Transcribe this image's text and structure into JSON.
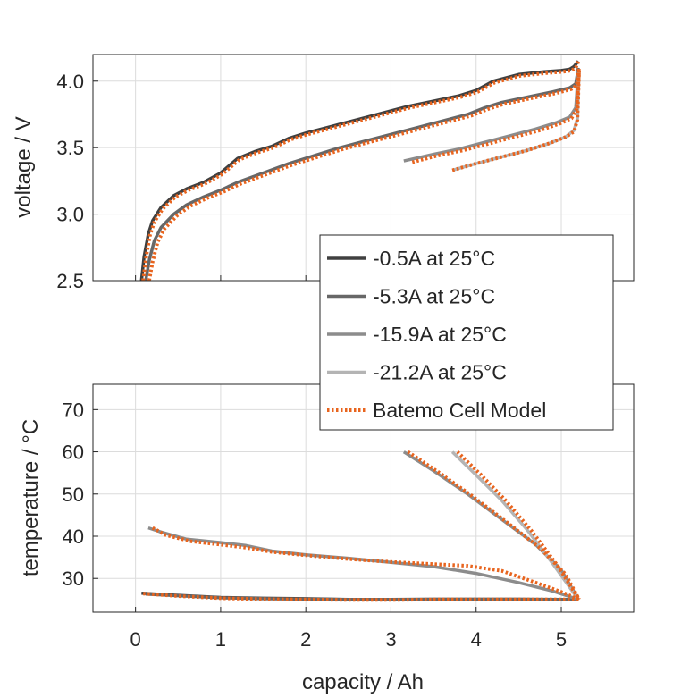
{
  "chart_data": [
    {
      "type": "line",
      "xlabel": "",
      "ylabel": "voltage / V",
      "xlim": [
        -0.5,
        5.85
      ],
      "ylim": [
        2.5,
        4.2
      ],
      "xticks": [
        0,
        1,
        2,
        3,
        4,
        5
      ],
      "xtick_labels": [],
      "yticks": [
        2.5,
        3.0,
        3.5,
        4.0
      ],
      "ytick_labels": [
        "2.5",
        "3.0",
        "3.5",
        "4.0"
      ],
      "grid": true,
      "series": [
        {
          "name": "-0.5A at 25°C",
          "color": "#404040",
          "style": "solid",
          "x": [
            0.07,
            0.1,
            0.15,
            0.2,
            0.3,
            0.45,
            0.6,
            0.8,
            1.0,
            1.2,
            1.4,
            1.6,
            1.8,
            2.0,
            2.3,
            2.6,
            2.9,
            3.2,
            3.5,
            3.8,
            4.0,
            4.2,
            4.5,
            4.8,
            5.0,
            5.1,
            5.15,
            5.2
          ],
          "y": [
            2.5,
            2.68,
            2.85,
            2.95,
            3.05,
            3.14,
            3.19,
            3.24,
            3.31,
            3.42,
            3.47,
            3.51,
            3.57,
            3.61,
            3.66,
            3.71,
            3.76,
            3.81,
            3.85,
            3.89,
            3.93,
            4.0,
            4.05,
            4.07,
            4.08,
            4.09,
            4.11,
            4.15
          ]
        },
        {
          "name": "-5.3A at 25°C",
          "color": "#676767",
          "style": "solid",
          "x": [
            0.12,
            0.16,
            0.22,
            0.3,
            0.45,
            0.6,
            0.8,
            1.0,
            1.2,
            1.5,
            1.8,
            2.1,
            2.4,
            2.7,
            3.0,
            3.3,
            3.6,
            3.9,
            4.1,
            4.3,
            4.6,
            4.9,
            5.1,
            5.17,
            5.2
          ],
          "y": [
            2.5,
            2.65,
            2.8,
            2.9,
            3.0,
            3.07,
            3.13,
            3.18,
            3.24,
            3.31,
            3.38,
            3.44,
            3.5,
            3.55,
            3.6,
            3.65,
            3.7,
            3.75,
            3.8,
            3.84,
            3.88,
            3.92,
            3.95,
            3.98,
            4.1
          ]
        },
        {
          "name": "-15.9A at 25°C",
          "color": "#8c8c8c",
          "style": "solid",
          "x": [
            3.15,
            3.5,
            3.8,
            4.1,
            4.4,
            4.7,
            4.95,
            5.1,
            5.17,
            5.2
          ],
          "y": [
            3.4,
            3.45,
            3.49,
            3.54,
            3.59,
            3.64,
            3.69,
            3.73,
            3.8,
            4.08
          ]
        },
        {
          "name": "-21.2A at 25°C",
          "color": "#b4b4b4",
          "style": "solid",
          "x": [
            3.72,
            4.0,
            4.3,
            4.6,
            4.85,
            5.05,
            5.15,
            5.19,
            5.21
          ],
          "y": [
            3.33,
            3.38,
            3.43,
            3.48,
            3.53,
            3.58,
            3.63,
            3.72,
            4.08
          ]
        },
        {
          "name": "Batemo Cell Model",
          "color": "#e8641e",
          "style": "dotted",
          "x": [
            0.09,
            0.12,
            0.17,
            0.22,
            0.32,
            0.47,
            0.62,
            0.82,
            1.02,
            1.22,
            1.42,
            1.62,
            1.82,
            2.02,
            2.32,
            2.62,
            2.92,
            3.22,
            3.52,
            3.82,
            4.02,
            4.22,
            4.52,
            4.82,
            5.02,
            5.12,
            5.17,
            5.21
          ],
          "y": [
            2.5,
            2.66,
            2.84,
            2.94,
            3.04,
            3.13,
            3.18,
            3.23,
            3.3,
            3.41,
            3.46,
            3.5,
            3.56,
            3.6,
            3.65,
            3.7,
            3.75,
            3.8,
            3.84,
            3.88,
            3.92,
            3.99,
            4.04,
            4.06,
            4.07,
            4.08,
            4.1,
            4.16
          ]
        },
        {
          "name": "",
          "color": "#e8641e",
          "style": "dotted",
          "x": [
            0.16,
            0.2,
            0.26,
            0.34,
            0.49,
            0.64,
            0.84,
            1.04,
            1.24,
            1.54,
            1.84,
            2.14,
            2.44,
            2.74,
            3.04,
            3.34,
            3.64,
            3.94,
            4.14,
            4.34,
            4.64,
            4.94,
            5.12,
            5.18,
            5.21
          ],
          "y": [
            2.5,
            2.64,
            2.79,
            2.89,
            2.99,
            3.06,
            3.12,
            3.17,
            3.23,
            3.3,
            3.37,
            3.43,
            3.49,
            3.54,
            3.59,
            3.64,
            3.69,
            3.74,
            3.79,
            3.83,
            3.87,
            3.91,
            3.94,
            3.97,
            4.1
          ]
        },
        {
          "name": "",
          "color": "#e8641e",
          "style": "dotted",
          "x": [
            3.25,
            3.55,
            3.85,
            4.15,
            4.45,
            4.75,
            4.98,
            5.12,
            5.18,
            5.21
          ],
          "y": [
            3.39,
            3.44,
            3.48,
            3.53,
            3.58,
            3.63,
            3.68,
            3.72,
            3.79,
            4.08
          ]
        },
        {
          "name": "",
          "color": "#e8641e",
          "style": "dotted",
          "x": [
            3.72,
            4.0,
            4.3,
            4.6,
            4.85,
            5.05,
            5.15,
            5.19,
            5.21
          ],
          "y": [
            3.33,
            3.38,
            3.43,
            3.48,
            3.53,
            3.58,
            3.62,
            3.71,
            4.08
          ]
        }
      ]
    },
    {
      "type": "line",
      "xlabel": "capacity / Ah",
      "ylabel": "temperature / °C",
      "xlim": [
        -0.5,
        5.85
      ],
      "ylim": [
        22,
        76
      ],
      "xticks": [
        0,
        1,
        2,
        3,
        4,
        5
      ],
      "xtick_labels": [
        "0",
        "1",
        "2",
        "3",
        "4",
        "5"
      ],
      "yticks": [
        30,
        40,
        50,
        60,
        70
      ],
      "ytick_labels": [
        "30",
        "40",
        "50",
        "60",
        "70"
      ],
      "grid": true,
      "series": [
        {
          "name": "-0.5A at 25°C",
          "color": "#404040",
          "style": "solid",
          "x": [
            0.07,
            0.5,
            1.0,
            1.5,
            2.0,
            2.5,
            3.0,
            3.5,
            4.0,
            4.5,
            5.0,
            5.2
          ],
          "y": [
            26.5,
            26.0,
            25.5,
            25.3,
            25.2,
            25.0,
            25.0,
            25.0,
            25.0,
            25.0,
            25.0,
            25.0
          ]
        },
        {
          "name": "-5.3A at 25°C",
          "color": "#676767",
          "style": "solid",
          "x": [
            0.12,
            0.5,
            1.0,
            1.5,
            2.0,
            2.5,
            3.0,
            3.5,
            4.0,
            4.5,
            5.0,
            5.2
          ],
          "y": [
            26.3,
            25.9,
            25.4,
            25.2,
            25.1,
            25.0,
            25.0,
            25.1,
            25.1,
            25.1,
            25.0,
            25.0
          ]
        },
        {
          "name": "-15.9A at 25°C",
          "color": "#8c8c8c",
          "style": "solid",
          "x": [
            0.15,
            0.3,
            0.6,
            1.0,
            1.3,
            1.6,
            2.0,
            2.5,
            3.0,
            3.5,
            4.0,
            4.5,
            4.9,
            5.2
          ],
          "y": [
            42.0,
            41.0,
            39.3,
            38.5,
            37.8,
            36.5,
            35.6,
            34.8,
            33.8,
            32.8,
            31.2,
            29.0,
            27.0,
            25.0
          ],
          "x2": [
            3.15,
            3.5,
            3.9,
            4.3,
            4.7,
            5.0,
            5.2
          ],
          "y2": [
            60.0,
            55.5,
            50.0,
            44.0,
            38.0,
            32.0,
            25.0
          ]
        },
        {
          "name": "-21.2A at 25°C",
          "color": "#b4b4b4",
          "style": "solid",
          "x": [
            3.72,
            4.0,
            4.3,
            4.6,
            4.9,
            5.2
          ],
          "y": [
            60.0,
            54.5,
            48.5,
            41.5,
            33.5,
            25.0
          ]
        },
        {
          "name": "Batemo Cell Model",
          "color": "#e8641e",
          "style": "dotted",
          "x": [
            0.09,
            0.52,
            1.02,
            1.52,
            2.02,
            2.52,
            3.02,
            3.52,
            4.02,
            4.52,
            5.02,
            5.21
          ],
          "y": [
            26.4,
            25.8,
            25.3,
            25.1,
            25.0,
            24.9,
            24.9,
            25.0,
            25.0,
            25.0,
            25.0,
            25.0
          ]
        },
        {
          "name": "",
          "color": "#e8641e",
          "style": "dotted",
          "x": [
            0.2,
            0.35,
            0.65,
            1.0,
            1.3,
            1.6,
            2.0,
            2.5,
            3.0,
            3.5,
            3.9,
            4.3,
            4.7,
            5.0,
            5.21
          ],
          "y": [
            42.0,
            40.3,
            38.8,
            38.0,
            37.3,
            36.3,
            35.5,
            34.6,
            33.9,
            33.4,
            33.0,
            31.8,
            29.0,
            26.8,
            25.0
          ]
        },
        {
          "name": "",
          "color": "#e8641e",
          "style": "dotted",
          "x": [
            3.2,
            3.55,
            3.95,
            4.35,
            4.75,
            5.05,
            5.21
          ],
          "y": [
            60.0,
            55.3,
            49.6,
            43.5,
            37.2,
            31.0,
            25.0
          ]
        },
        {
          "name": "",
          "color": "#e8641e",
          "style": "dotted",
          "x": [
            3.78,
            4.05,
            4.35,
            4.65,
            4.95,
            5.21
          ],
          "y": [
            60.0,
            54.7,
            48.4,
            41.3,
            33.2,
            25.0
          ]
        }
      ]
    }
  ],
  "legend": {
    "placement": "center-right",
    "entries": [
      {
        "label": "-0.5A at 25°C",
        "color": "#404040",
        "style": "solid"
      },
      {
        "label": "-5.3A at 25°C",
        "color": "#676767",
        "style": "solid"
      },
      {
        "label": "-15.9A at 25°C",
        "color": "#8c8c8c",
        "style": "solid"
      },
      {
        "label": "-21.2A at 25°C",
        "color": "#b4b4b4",
        "style": "solid"
      },
      {
        "label": "Batemo Cell Model",
        "color": "#e8641e",
        "style": "dotted"
      }
    ]
  }
}
